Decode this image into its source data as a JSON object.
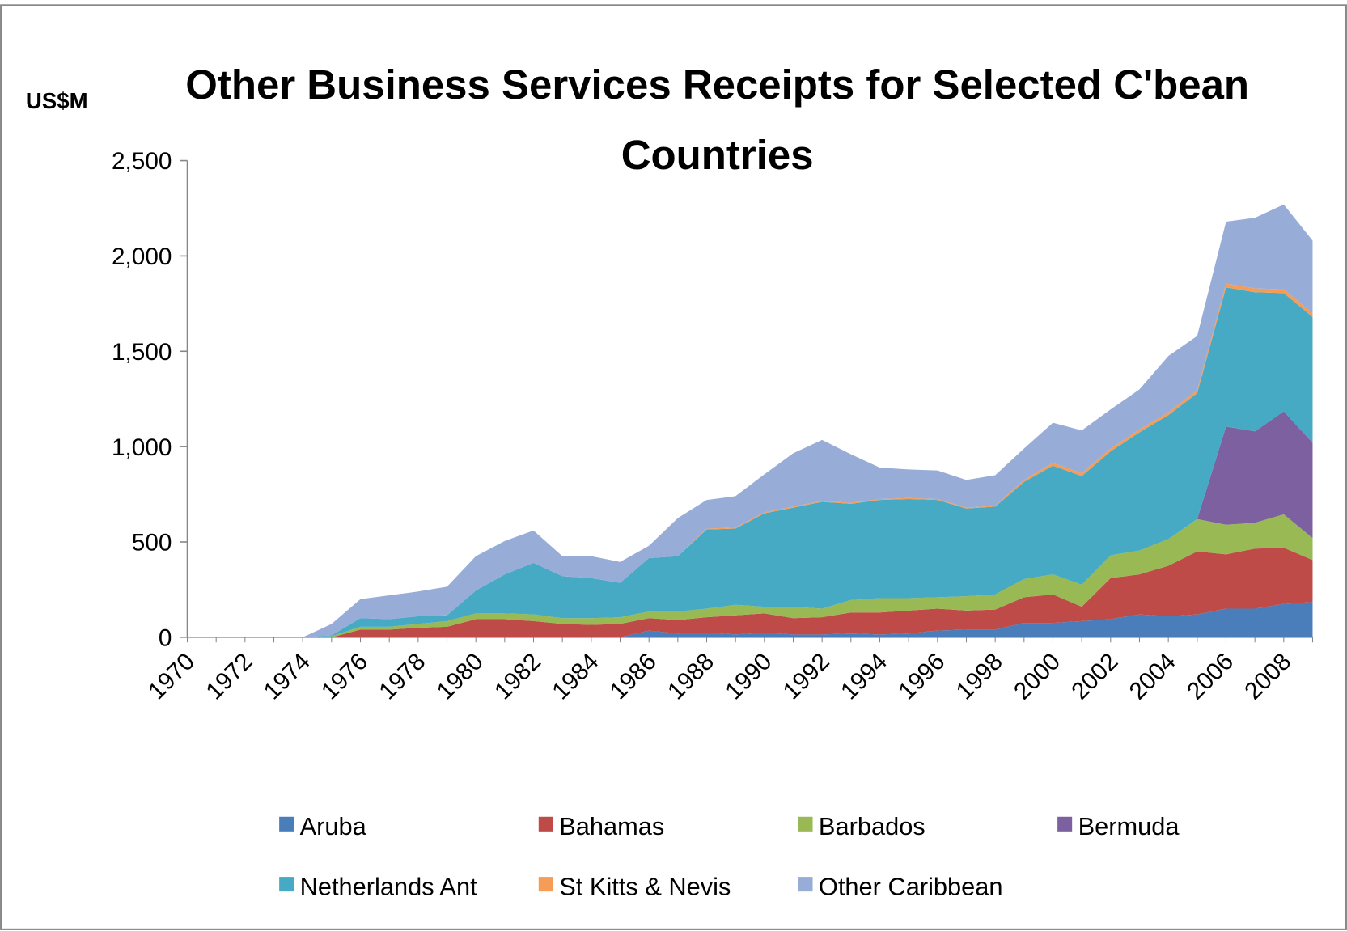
{
  "chart_data": {
    "type": "stacked_area",
    "title": "Other Business Services Receipts for Selected C'bean Countries",
    "y_axis_label": "US$M",
    "categories": [
      "1970",
      null,
      "1972",
      null,
      "1974",
      null,
      "1976",
      null,
      "1978",
      null,
      "1980",
      null,
      "1982",
      null,
      "1984",
      null,
      "1986",
      null,
      "1988",
      null,
      "1990",
      null,
      "1992",
      null,
      "1994",
      null,
      "1996",
      null,
      "1998",
      null,
      "2000",
      null,
      "2002",
      null,
      "2004",
      null,
      "2006",
      null,
      "2008",
      null
    ],
    "series": [
      {
        "name": "Aruba",
        "color": "#4a7ebb",
        "values": [
          0,
          0,
          0,
          0,
          0,
          0,
          0,
          0,
          0,
          0,
          0,
          0,
          0,
          0,
          0,
          0,
          35,
          20,
          25,
          15,
          25,
          15,
          15,
          20,
          15,
          20,
          35,
          40,
          40,
          75,
          75,
          85,
          95,
          120,
          110,
          120,
          150,
          150,
          175,
          185
        ]
      },
      {
        "name": "Bahamas",
        "color": "#be4b48",
        "values": [
          0,
          0,
          0,
          0,
          0,
          0,
          40,
          40,
          50,
          55,
          95,
          95,
          85,
          70,
          65,
          70,
          65,
          70,
          80,
          100,
          100,
          85,
          90,
          110,
          115,
          120,
          115,
          100,
          105,
          135,
          150,
          75,
          215,
          210,
          265,
          330,
          285,
          315,
          295,
          220
        ]
      },
      {
        "name": "Barbados",
        "color": "#98b954",
        "values": [
          0,
          0,
          0,
          0,
          0,
          5,
          15,
          15,
          20,
          30,
          30,
          30,
          35,
          30,
          35,
          35,
          35,
          45,
          45,
          55,
          35,
          60,
          45,
          65,
          75,
          65,
          60,
          75,
          80,
          95,
          105,
          115,
          120,
          125,
          140,
          170,
          155,
          135,
          175,
          115
        ]
      },
      {
        "name": "Bermuda",
        "color": "#7d60a0",
        "values": [
          0,
          0,
          0,
          0,
          0,
          0,
          0,
          0,
          0,
          0,
          0,
          0,
          0,
          0,
          0,
          0,
          0,
          0,
          0,
          0,
          0,
          0,
          0,
          0,
          0,
          0,
          0,
          0,
          0,
          0,
          0,
          0,
          0,
          0,
          0,
          0,
          515,
          480,
          540,
          500
        ]
      },
      {
        "name": "Netherlands Ant",
        "color": "#46aac5",
        "values": [
          0,
          0,
          0,
          0,
          0,
          5,
          45,
          40,
          40,
          30,
          120,
          205,
          270,
          220,
          210,
          180,
          280,
          290,
          415,
          400,
          490,
          520,
          560,
          505,
          515,
          520,
          510,
          460,
          460,
          510,
          570,
          570,
          545,
          620,
          650,
          660,
          730,
          730,
          620,
          660
        ]
      },
      {
        "name": "St Kitts & Nevis",
        "color": "#f59d56",
        "values": [
          0,
          0,
          0,
          0,
          0,
          0,
          0,
          0,
          0,
          0,
          0,
          0,
          0,
          0,
          0,
          0,
          0,
          0,
          5,
          5,
          5,
          5,
          5,
          5,
          5,
          5,
          5,
          5,
          5,
          10,
          15,
          15,
          15,
          15,
          15,
          15,
          20,
          20,
          20,
          20
        ]
      },
      {
        "name": "Other Caribbean",
        "color": "#98acd8",
        "values": [
          0,
          0,
          0,
          0,
          0,
          60,
          100,
          125,
          130,
          150,
          180,
          175,
          170,
          105,
          115,
          110,
          65,
          200,
          150,
          165,
          200,
          280,
          320,
          255,
          165,
          150,
          150,
          145,
          160,
          165,
          210,
          225,
          205,
          210,
          295,
          285,
          325,
          370,
          445,
          380
        ]
      }
    ],
    "ylim": [
      0,
      2500
    ],
    "yticks": [
      0,
      500,
      {
        "value": 1000,
        "label": "1,000"
      },
      {
        "value": 1500,
        "label": "1,500"
      },
      {
        "value": 2000,
        "label": "2,000"
      },
      {
        "value": 2500,
        "label": "2,500"
      }
    ],
    "legend": "bottom"
  }
}
